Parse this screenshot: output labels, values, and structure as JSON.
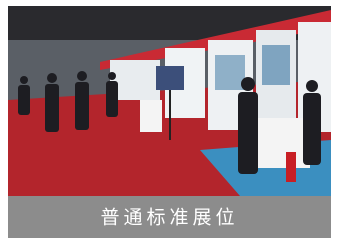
{
  "caption": "普通标准展位"
}
